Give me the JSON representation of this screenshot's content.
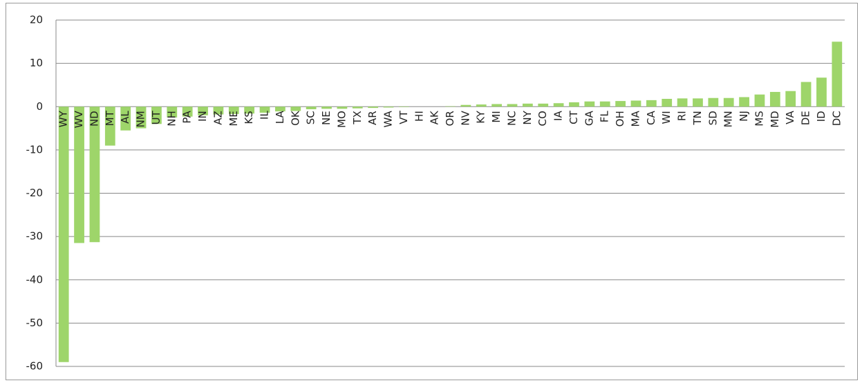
{
  "chart_data": {
    "type": "bar",
    "categories": [
      "WY",
      "WV",
      "ND",
      "MT",
      "AL",
      "NM",
      "UT",
      "NH",
      "PA",
      "IN",
      "AZ",
      "ME",
      "KS",
      "IL",
      "LA",
      "OK",
      "SC",
      "NE",
      "MO",
      "TX",
      "AR",
      "WA",
      "VT",
      "HI",
      "AK",
      "OR",
      "NV",
      "KY",
      "MI",
      "NC",
      "NY",
      "CO",
      "IA",
      "CT",
      "GA",
      "FL",
      "OH",
      "MA",
      "CA",
      "WI",
      "RI",
      "TN",
      "SD",
      "MN",
      "NJ",
      "MS",
      "MD",
      "VA",
      "DE",
      "ID",
      "DC"
    ],
    "values": [
      -59,
      -31.5,
      -31.3,
      -9,
      -5.5,
      -5,
      -4,
      -2.5,
      -2.3,
      -2,
      -1.8,
      -1.7,
      -1.6,
      -1.4,
      -1.1,
      -1,
      -0.6,
      -0.5,
      -0.5,
      -0.4,
      -0.3,
      -0.2,
      -0.1,
      0,
      0,
      0.1,
      0.4,
      0.5,
      0.6,
      0.6,
      0.7,
      0.7,
      0.8,
      1.0,
      1.2,
      1.2,
      1.3,
      1.4,
      1.5,
      1.8,
      1.9,
      1.9,
      2.0,
      2.0,
      2.2,
      2.8,
      3.4,
      3.6,
      5.7,
      6.7,
      15
    ],
    "color": "#9ed56a",
    "ylim": [
      -60,
      20
    ],
    "yticks": [
      -60,
      -50,
      -40,
      -30,
      -20,
      -10,
      0,
      10,
      20
    ],
    "grid": true
  }
}
